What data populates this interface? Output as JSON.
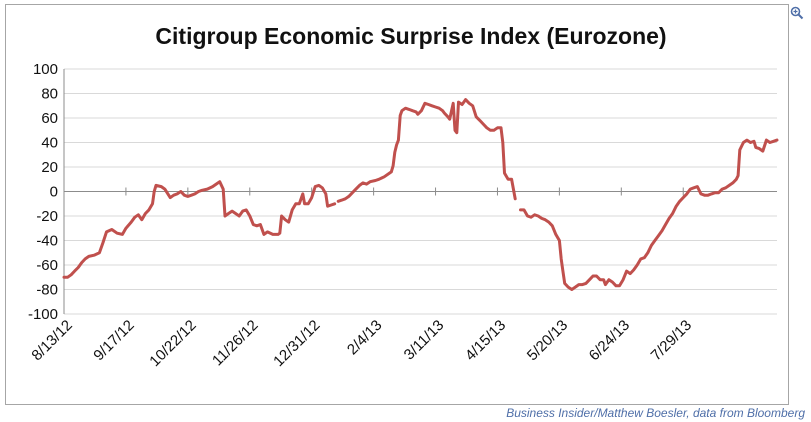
{
  "credit": "Business Insider/Matthew Boesler, data from Bloomberg",
  "icons": {
    "expand": "zoom-icon"
  },
  "colors": {
    "line": "#c0504d",
    "grid": "#d9d9d9",
    "axis": "#8c8c8c"
  },
  "chart_data": {
    "type": "line",
    "title": "Citigroup Economic Surprise Index (Eurozone)",
    "xlabel": "",
    "ylabel": "",
    "ylim": [
      -100,
      100
    ],
    "yticks": [
      100,
      80,
      60,
      40,
      20,
      0,
      -20,
      -40,
      -60,
      -80,
      -100
    ],
    "xticks": [
      "8/13/12",
      "9/17/12",
      "10/22/12",
      "11/26/12",
      "12/31/12",
      "2/4/13",
      "3/11/13",
      "4/15/13",
      "5/20/13",
      "6/24/13",
      "7/29/13"
    ],
    "x_units": "days since 8/13/12",
    "grid": true,
    "legend": "none",
    "series": [
      {
        "name": "Citigroup Economic Surprise Index (Eurozone)",
        "segments": [
          [
            [
              0,
              -70
            ],
            [
              2,
              -70
            ],
            [
              4,
              -68
            ],
            [
              6,
              -65
            ],
            [
              8,
              -62
            ],
            [
              10,
              -58
            ],
            [
              12,
              -55
            ],
            [
              14,
              -53
            ],
            [
              17,
              -52
            ],
            [
              20,
              -50
            ],
            [
              22,
              -42
            ],
            [
              24,
              -33
            ],
            [
              27,
              -31
            ],
            [
              30,
              -34
            ],
            [
              33,
              -35
            ],
            [
              35,
              -30
            ],
            [
              38,
              -25
            ],
            [
              40,
              -21
            ],
            [
              42,
              -19
            ],
            [
              44,
              -23
            ],
            [
              46,
              -18
            ],
            [
              48,
              -15
            ],
            [
              50,
              -10
            ],
            [
              51,
              0
            ],
            [
              52,
              5
            ],
            [
              55,
              4
            ],
            [
              57,
              2
            ],
            [
              60,
              -5
            ],
            [
              62,
              -3
            ],
            [
              64,
              -2
            ],
            [
              66,
              0
            ],
            [
              68,
              -3
            ],
            [
              70,
              -4
            ],
            [
              72,
              -3
            ],
            [
              74,
              -2
            ],
            [
              76,
              0
            ],
            [
              78,
              1
            ],
            [
              81,
              2
            ],
            [
              84,
              4
            ],
            [
              86,
              6
            ],
            [
              88,
              8
            ],
            [
              90,
              2
            ],
            [
              91,
              -20
            ],
            [
              93,
              -18
            ],
            [
              95,
              -16
            ],
            [
              97,
              -18
            ],
            [
              99,
              -20
            ],
            [
              101,
              -16
            ],
            [
              103,
              -15
            ],
            [
              105,
              -20
            ],
            [
              107,
              -27
            ],
            [
              109,
              -28
            ],
            [
              111,
              -27
            ],
            [
              113,
              -35
            ],
            [
              115,
              -33
            ],
            [
              118,
              -35
            ],
            [
              121,
              -35
            ],
            [
              122,
              -34
            ],
            [
              123,
              -20
            ],
            [
              125,
              -23
            ],
            [
              127,
              -25
            ],
            [
              129,
              -15
            ],
            [
              131,
              -10
            ],
            [
              133,
              -10
            ],
            [
              135,
              -2
            ],
            [
              136,
              -10
            ],
            [
              138,
              -10
            ],
            [
              140,
              -5
            ],
            [
              142,
              4
            ],
            [
              144,
              5
            ],
            [
              146,
              3
            ],
            [
              148,
              -2
            ],
            [
              149,
              -12
            ],
            [
              151,
              -11
            ],
            [
              153,
              -10
            ]
          ],
          [
            [
              155,
              -8
            ],
            [
              157,
              -7
            ],
            [
              159,
              -6
            ],
            [
              161,
              -4
            ],
            [
              163,
              -1
            ],
            [
              165,
              2
            ],
            [
              167,
              5
            ],
            [
              169,
              7
            ],
            [
              171,
              6
            ],
            [
              173,
              8
            ],
            [
              176,
              9
            ],
            [
              178,
              10
            ],
            [
              181,
              12
            ],
            [
              184,
              15
            ],
            [
              185,
              16
            ],
            [
              186,
              21
            ],
            [
              187,
              32
            ],
            [
              188,
              38
            ],
            [
              189,
              42
            ],
            [
              190,
              62
            ],
            [
              191,
              66
            ],
            [
              193,
              68
            ],
            [
              195,
              67
            ],
            [
              197,
              66
            ],
            [
              199,
              65
            ],
            [
              200,
              63
            ],
            [
              202,
              66
            ],
            [
              204,
              72
            ],
            [
              206,
              71
            ],
            [
              208,
              70
            ],
            [
              210,
              69
            ],
            [
              212,
              68
            ],
            [
              214,
              66
            ],
            [
              215,
              64
            ],
            [
              217,
              61
            ],
            [
              218,
              59
            ],
            [
              220,
              72
            ],
            [
              221,
              50
            ],
            [
              222,
              48
            ],
            [
              223,
              73
            ],
            [
              225,
              71
            ],
            [
              227,
              75
            ],
            [
              229,
              72
            ],
            [
              231,
              70
            ],
            [
              233,
              61
            ],
            [
              235,
              58
            ],
            [
              237,
              55
            ],
            [
              239,
              52
            ],
            [
              241,
              50
            ],
            [
              243,
              50
            ],
            [
              245,
              52
            ],
            [
              247,
              52
            ],
            [
              248,
              40
            ],
            [
              249,
              15
            ],
            [
              251,
              10
            ],
            [
              253,
              10
            ],
            [
              255,
              -6
            ]
          ],
          [
            [
              258,
              -15
            ],
            [
              260,
              -15
            ],
            [
              262,
              -20
            ],
            [
              264,
              -21
            ],
            [
              266,
              -19
            ],
            [
              268,
              -20
            ],
            [
              270,
              -22
            ],
            [
              272,
              -23
            ],
            [
              274,
              -25
            ],
            [
              276,
              -28
            ],
            [
              278,
              -35
            ],
            [
              280,
              -40
            ],
            [
              281,
              -55
            ],
            [
              282,
              -65
            ],
            [
              283,
              -75
            ],
            [
              285,
              -78
            ],
            [
              287,
              -80
            ],
            [
              289,
              -78
            ],
            [
              291,
              -76
            ],
            [
              293,
              -76
            ],
            [
              295,
              -75
            ],
            [
              297,
              -72
            ],
            [
              299,
              -69
            ],
            [
              301,
              -69
            ],
            [
              303,
              -72
            ],
            [
              305,
              -72
            ],
            [
              306,
              -76
            ],
            [
              308,
              -72
            ],
            [
              310,
              -74
            ],
            [
              312,
              -77
            ],
            [
              314,
              -77
            ],
            [
              316,
              -72
            ],
            [
              318,
              -65
            ],
            [
              320,
              -67
            ],
            [
              322,
              -64
            ],
            [
              324,
              -60
            ],
            [
              326,
              -55
            ],
            [
              328,
              -54
            ],
            [
              330,
              -50
            ],
            [
              332,
              -44
            ],
            [
              334,
              -40
            ],
            [
              336,
              -36
            ],
            [
              338,
              -32
            ],
            [
              340,
              -27
            ],
            [
              342,
              -22
            ],
            [
              344,
              -18
            ],
            [
              346,
              -12
            ],
            [
              348,
              -8
            ],
            [
              350,
              -5
            ],
            [
              352,
              -2
            ],
            [
              354,
              2
            ],
            [
              356,
              3
            ],
            [
              358,
              4
            ],
            [
              360,
              -2
            ],
            [
              362,
              -3
            ],
            [
              364,
              -3
            ],
            [
              366,
              -2
            ],
            [
              368,
              -1
            ],
            [
              370,
              -1
            ],
            [
              372,
              2
            ],
            [
              374,
              3
            ],
            [
              376,
              5
            ],
            [
              378,
              7
            ],
            [
              380,
              10
            ],
            [
              381,
              13
            ],
            [
              382,
              34
            ],
            [
              384,
              40
            ],
            [
              386,
              42
            ],
            [
              388,
              40
            ],
            [
              390,
              41
            ],
            [
              391,
              36
            ],
            [
              393,
              35
            ],
            [
              395,
              33
            ],
            [
              397,
              42
            ],
            [
              399,
              40
            ],
            [
              401,
              41
            ],
            [
              403,
              42
            ]
          ]
        ]
      }
    ]
  }
}
